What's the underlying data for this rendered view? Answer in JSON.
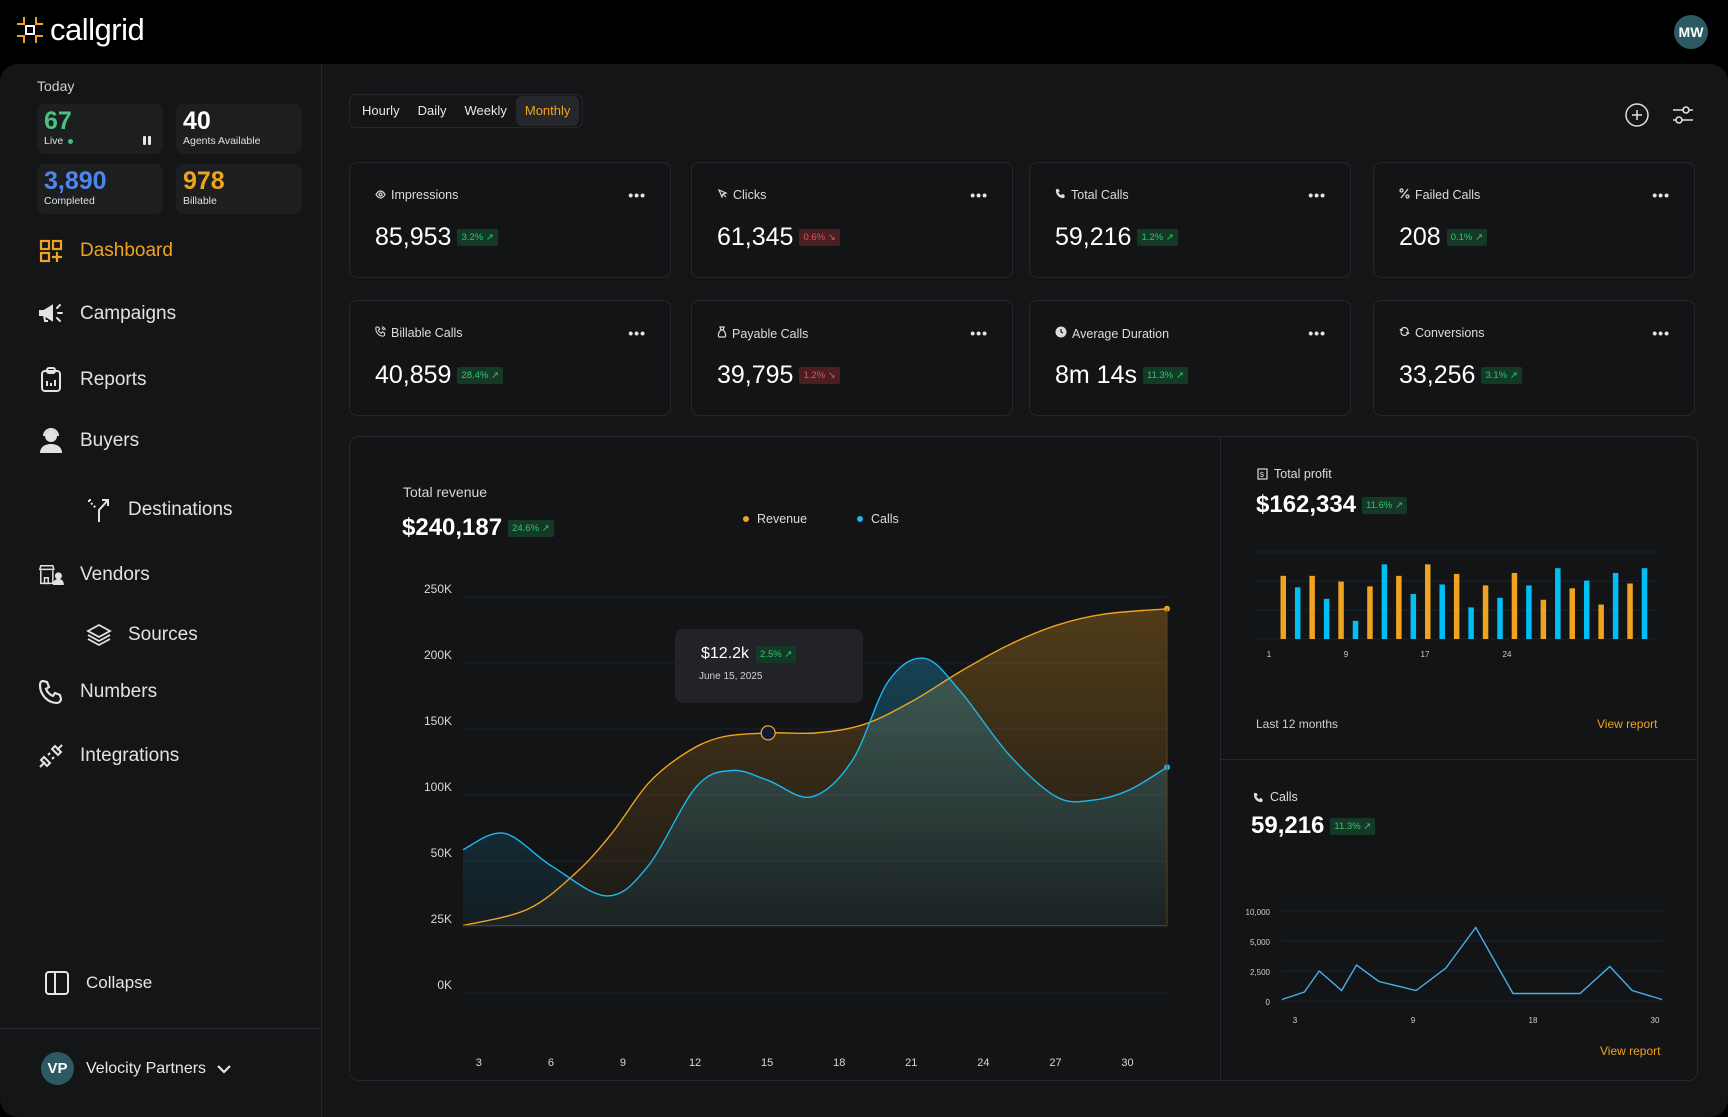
{
  "app": {
    "brand": "callgrid",
    "user_initials": "MW"
  },
  "sidebar": {
    "today_label": "Today",
    "stats": [
      {
        "value": "67",
        "label": "Live",
        "color": "#4cc07f"
      },
      {
        "value": "40",
        "label": "Agents Available",
        "color": "#ffffff"
      },
      {
        "value": "3,890",
        "label": "Completed",
        "color": "#4f86ee"
      },
      {
        "value": "978",
        "label": "Billable",
        "color": "#f0a321"
      }
    ],
    "nav": [
      {
        "label": "Dashboard",
        "icon": "dashboard-icon",
        "active": true
      },
      {
        "label": "Campaigns",
        "icon": "megaphone-icon"
      },
      {
        "label": "Reports",
        "icon": "clipboard-chart-icon"
      },
      {
        "label": "Buyers",
        "icon": "headset-user-icon"
      },
      {
        "label": "Destinations",
        "icon": "split-arrow-icon",
        "sub": true
      },
      {
        "label": "Vendors",
        "icon": "store-user-icon"
      },
      {
        "label": "Sources",
        "icon": "layers-icon",
        "sub": true
      },
      {
        "label": "Numbers",
        "icon": "phone-icon"
      },
      {
        "label": "Integrations",
        "icon": "plug-icon"
      }
    ],
    "collapse_label": "Collapse",
    "account": {
      "initials": "VP",
      "name": "Velocity Partners"
    }
  },
  "toolbar": {
    "tabs": [
      "Hourly",
      "Daily",
      "Weekly",
      "Monthly"
    ],
    "active_tab": "Monthly"
  },
  "kpis": [
    {
      "title": "Impressions",
      "icon": "eye-icon",
      "value": "85,953",
      "change": "3.2%",
      "direction": "up"
    },
    {
      "title": "Clicks",
      "icon": "cursor-click-icon",
      "value": "61,345",
      "change": "0.6%",
      "direction": "down"
    },
    {
      "title": "Total Calls",
      "icon": "phone-icon",
      "value": "59,216",
      "change": "1.2%",
      "direction": "up"
    },
    {
      "title": "Failed Calls",
      "icon": "percent-icon",
      "value": "208",
      "change": "0.1%",
      "direction": "up"
    },
    {
      "title": "Billable Calls",
      "icon": "phone-call-icon",
      "value": "40,859",
      "change": "28.4%",
      "direction": "up"
    },
    {
      "title": "Payable Calls",
      "icon": "money-bag-icon",
      "value": "39,795",
      "change": "1.2%",
      "direction": "down"
    },
    {
      "title": "Average Duration",
      "icon": "clock-icon",
      "value": "8m 14s",
      "change": "11.3%",
      "direction": "up"
    },
    {
      "title": "Conversions",
      "icon": "refresh-icon",
      "value": "33,256",
      "change": "3.1%",
      "direction": "up"
    }
  ],
  "revenue_panel": {
    "title": "Total revenue",
    "value": "$240,187",
    "change": "24.6%",
    "legend": [
      {
        "name": "Revenue",
        "color": "#f0a321"
      },
      {
        "name": "Calls",
        "color": "#1fb6ee"
      }
    ],
    "tooltip": {
      "value": "$12.2k",
      "change": "2.5%",
      "date": "June 15, 2025"
    }
  },
  "profit_panel": {
    "title": "Total profit",
    "value": "$162,334",
    "change": "11.6%",
    "footer": "Last 12 months",
    "link": "View report"
  },
  "calls_panel": {
    "title": "Calls",
    "value": "59,216",
    "change": "11.3%",
    "link": "View report"
  },
  "chart_data": [
    {
      "type": "area",
      "title": "Total revenue",
      "xlabel": "",
      "ylabel": "",
      "x_ticks": [
        3,
        6,
        9,
        12,
        15,
        18,
        21,
        24,
        27,
        30
      ],
      "y_ticks": [
        "0K",
        "25K",
        "50K",
        "100K",
        "150K",
        "200K",
        "250K"
      ],
      "xlim": [
        2.3,
        31.6
      ],
      "grid": true,
      "legend": "top-center",
      "series": [
        {
          "name": "Revenue",
          "color": "#f0a321",
          "x": [
            2.3,
            5,
            7,
            8.5,
            10,
            11.5,
            13,
            15,
            17,
            19,
            21,
            23,
            25,
            27,
            29,
            31.6
          ],
          "y_index": [
            0.9,
            1.15,
            1.7,
            2.3,
            3.05,
            3.5,
            3.75,
            3.82,
            3.82,
            3.95,
            4.3,
            4.75,
            5.15,
            5.45,
            5.62,
            5.7
          ]
        },
        {
          "name": "Calls",
          "color": "#1fb6ee",
          "x": [
            2.3,
            4,
            6,
            8.3,
            10,
            12,
            13.5,
            15,
            16.8,
            18.5,
            20,
            21.5,
            23,
            25,
            27,
            28.5,
            30,
            31.6
          ],
          "y_index": [
            2.05,
            2.3,
            1.8,
            1.35,
            1.8,
            3.0,
            3.25,
            3.1,
            2.85,
            3.4,
            4.6,
            4.95,
            4.45,
            3.5,
            2.85,
            2.8,
            2.95,
            3.3
          ]
        }
      ],
      "highlight_point": {
        "series": "Revenue",
        "x": 15,
        "value": "$12.2k",
        "date": "June 15, 2025"
      }
    },
    {
      "type": "bar",
      "title": "Total profit",
      "x_ticks": [
        "1",
        "9",
        "17",
        "24"
      ],
      "series_colors": [
        "#f0a321",
        "#00bff5"
      ],
      "values_relative": [
        0.66,
        0.54,
        0.66,
        0.42,
        0.6,
        0.19,
        0.55,
        0.78,
        0.66,
        0.47,
        0.78,
        0.57,
        0.68,
        0.33,
        0.56,
        0.43,
        0.69,
        0.56,
        0.41,
        0.74,
        0.53,
        0.61,
        0.36,
        0.69,
        0.58,
        0.74
      ],
      "ylim": [
        0,
        1
      ],
      "grid": true
    },
    {
      "type": "line",
      "title": "Calls",
      "y_ticks": [
        "0",
        "2,500",
        "5,000",
        "10,000"
      ],
      "x_ticks": [
        3,
        9,
        18,
        30
      ],
      "x": [
        2,
        3.5,
        4.5,
        6,
        7,
        8.5,
        11,
        13,
        15,
        17.5,
        22,
        24,
        25.5,
        27.5
      ],
      "y_index": [
        0.05,
        0.3,
        1.0,
        0.35,
        1.2,
        0.65,
        0.35,
        1.1,
        2.45,
        0.25,
        0.25,
        1.15,
        0.35,
        0.05
      ],
      "color": "#4aaee8",
      "grid": true
    }
  ]
}
